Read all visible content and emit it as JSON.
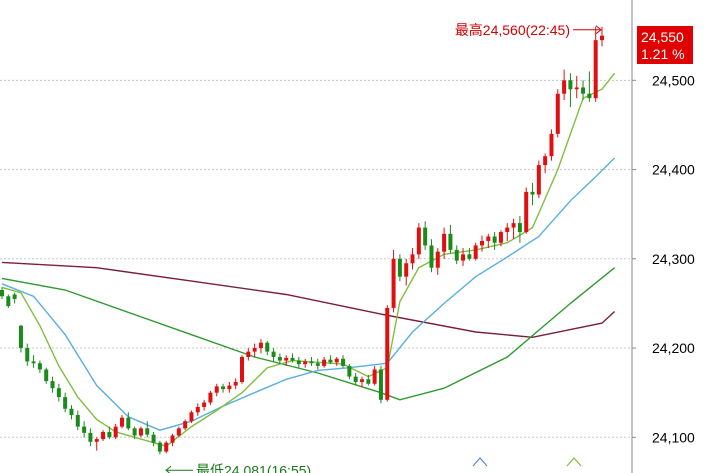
{
  "chart_data": {
    "type": "candlestick",
    "yticks": [
      24100,
      24200,
      24300,
      24400,
      24500
    ],
    "ylim": [
      24060,
      24590
    ],
    "grid": true,
    "last_price_label": "24,550",
    "last_change_label": "1.21 %",
    "high_annotation": "最高24,560(22:45)",
    "low_annotation": "最低24,081(16:55)",
    "candles": [
      [
        24265,
        24268,
        24255,
        24258
      ],
      [
        24258,
        24260,
        24245,
        24247
      ],
      [
        24260,
        24262,
        24250,
        24255
      ],
      [
        24225,
        24226,
        24195,
        24200
      ],
      [
        24200,
        24205,
        24180,
        24185
      ],
      [
        24185,
        24192,
        24178,
        24183
      ],
      [
        24183,
        24186,
        24172,
        24176
      ],
      [
        24176,
        24178,
        24160,
        24163
      ],
      [
        24163,
        24168,
        24150,
        24155
      ],
      [
        24155,
        24160,
        24140,
        24145
      ],
      [
        24145,
        24150,
        24128,
        24132
      ],
      [
        24132,
        24136,
        24120,
        24125
      ],
      [
        24125,
        24130,
        24108,
        24112
      ],
      [
        24112,
        24118,
        24100,
        24105
      ],
      [
        24105,
        24110,
        24090,
        24095
      ],
      [
        24095,
        24100,
        24085,
        24098
      ],
      [
        24098,
        24108,
        24096,
        24106
      ],
      [
        24106,
        24112,
        24098,
        24100
      ],
      [
        24100,
        24115,
        24098,
        24112
      ],
      [
        24112,
        24125,
        24110,
        24122
      ],
      [
        24122,
        24128,
        24108,
        24110
      ],
      [
        24110,
        24112,
        24098,
        24102
      ],
      [
        24102,
        24112,
        24100,
        24110
      ],
      [
        24110,
        24118,
        24100,
        24103
      ],
      [
        24103,
        24106,
        24090,
        24094
      ],
      [
        24094,
        24096,
        24081,
        24084
      ],
      [
        24084,
        24096,
        24082,
        24094
      ],
      [
        24094,
        24104,
        24090,
        24102
      ],
      [
        24102,
        24112,
        24100,
        24110
      ],
      [
        24110,
        24120,
        24108,
        24118
      ],
      [
        24118,
        24130,
        24116,
        24128
      ],
      [
        24128,
        24138,
        24124,
        24134
      ],
      [
        24134,
        24142,
        24130,
        24139
      ],
      [
        24139,
        24152,
        24136,
        24150
      ],
      [
        24150,
        24160,
        24146,
        24157
      ],
      [
        24157,
        24160,
        24150,
        24154
      ],
      [
        24154,
        24162,
        24150,
        24158
      ],
      [
        24158,
        24166,
        24154,
        24162
      ],
      [
        24162,
        24192,
        24160,
        24190
      ],
      [
        24190,
        24200,
        24186,
        24196
      ],
      [
        24196,
        24205,
        24190,
        24200
      ],
      [
        24200,
        24210,
        24194,
        24206
      ],
      [
        24206,
        24208,
        24192,
        24196
      ],
      [
        24196,
        24200,
        24185,
        24190
      ],
      [
        24190,
        24194,
        24182,
        24186
      ],
      [
        24186,
        24192,
        24180,
        24189
      ],
      [
        24189,
        24194,
        24184,
        24186
      ],
      [
        24186,
        24190,
        24178,
        24182
      ],
      [
        24182,
        24188,
        24178,
        24185
      ],
      [
        24185,
        24190,
        24180,
        24183
      ],
      [
        24183,
        24188,
        24176,
        24180
      ],
      [
        24180,
        24190,
        24178,
        24187
      ],
      [
        24187,
        24192,
        24182,
        24184
      ],
      [
        24184,
        24190,
        24180,
        24188
      ],
      [
        24188,
        24192,
        24178,
        24180
      ],
      [
        24180,
        24182,
        24165,
        24168
      ],
      [
        24168,
        24172,
        24158,
        24162
      ],
      [
        24162,
        24168,
        24156,
        24165
      ],
      [
        24165,
        24170,
        24158,
        24160
      ],
      [
        24160,
        24180,
        24158,
        24176
      ],
      [
        24176,
        24180,
        24138,
        24142
      ],
      [
        24142,
        24248,
        24140,
        24245
      ],
      [
        24245,
        24310,
        24240,
        24300
      ],
      [
        24300,
        24305,
        24275,
        24280
      ],
      [
        24280,
        24300,
        24270,
        24295
      ],
      [
        24295,
        24312,
        24288,
        24305
      ],
      [
        24305,
        24340,
        24300,
        24335
      ],
      [
        24335,
        24342,
        24310,
        24315
      ],
      [
        24315,
        24322,
        24285,
        24290
      ],
      [
        24290,
        24312,
        24282,
        24308
      ],
      [
        24308,
        24335,
        24300,
        24328
      ],
      [
        24328,
        24338,
        24306,
        24310
      ],
      [
        24310,
        24315,
        24294,
        24298
      ],
      [
        24298,
        24312,
        24292,
        24305
      ],
      [
        24305,
        24312,
        24298,
        24300
      ],
      [
        24300,
        24318,
        24298,
        24315
      ],
      [
        24315,
        24326,
        24308,
        24320
      ],
      [
        24320,
        24328,
        24312,
        24325
      ],
      [
        24325,
        24330,
        24310,
        24318
      ],
      [
        24318,
        24332,
        24314,
        24330
      ],
      [
        24330,
        24340,
        24320,
        24335
      ],
      [
        24335,
        24345,
        24322,
        24340
      ],
      [
        24340,
        24348,
        24318,
        24330
      ],
      [
        24330,
        24380,
        24328,
        24375
      ],
      [
        24375,
        24385,
        24360,
        24372
      ],
      [
        24372,
        24410,
        24368,
        24405
      ],
      [
        24405,
        24418,
        24396,
        24415
      ],
      [
        24415,
        24445,
        24410,
        24440
      ],
      [
        24440,
        24490,
        24436,
        24485
      ],
      [
        24485,
        24512,
        24478,
        24500
      ],
      [
        24500,
        24508,
        24470,
        24490
      ],
      [
        24490,
        24505,
        24480,
        24492
      ],
      [
        24492,
        24500,
        24478,
        24485
      ],
      [
        24485,
        24510,
        24476,
        24480
      ],
      [
        24480,
        24560,
        24476,
        24545
      ],
      [
        24545,
        24560,
        24538,
        24550
      ]
    ],
    "series": [
      {
        "color": "#7a1f3d",
        "points": [
          [
            0,
            24296
          ],
          [
            15,
            24290
          ],
          [
            30,
            24275
          ],
          [
            45,
            24260
          ],
          [
            60,
            24238
          ],
          [
            75,
            24218
          ],
          [
            84,
            24212
          ],
          [
            95,
            24228
          ],
          [
            97,
            24241
          ]
        ]
      },
      {
        "color": "#2f9a2f",
        "points": [
          [
            0,
            24278
          ],
          [
            10,
            24265
          ],
          [
            20,
            24240
          ],
          [
            30,
            24215
          ],
          [
            40,
            24190
          ],
          [
            50,
            24172
          ],
          [
            60,
            24150
          ],
          [
            63,
            24142
          ],
          [
            70,
            24155
          ],
          [
            80,
            24190
          ],
          [
            90,
            24250
          ],
          [
            97,
            24290
          ]
        ]
      },
      {
        "color": "#5aaee0",
        "points": [
          [
            0,
            24272
          ],
          [
            5,
            24258
          ],
          [
            10,
            24215
          ],
          [
            15,
            24158
          ],
          [
            20,
            24123
          ],
          [
            25,
            24108
          ],
          [
            30,
            24118
          ],
          [
            35,
            24135
          ],
          [
            40,
            24150
          ],
          [
            45,
            24165
          ],
          [
            50,
            24175
          ],
          [
            55,
            24178
          ],
          [
            61,
            24183
          ],
          [
            65,
            24218
          ],
          [
            70,
            24250
          ],
          [
            75,
            24280
          ],
          [
            80,
            24302
          ],
          [
            85,
            24325
          ],
          [
            90,
            24365
          ],
          [
            94,
            24392
          ],
          [
            97,
            24413
          ]
        ]
      },
      {
        "color": "#7fbf3f",
        "points": [
          [
            0,
            24268
          ],
          [
            3,
            24262
          ],
          [
            6,
            24225
          ],
          [
            9,
            24180
          ],
          [
            12,
            24145
          ],
          [
            15,
            24120
          ],
          [
            18,
            24106
          ],
          [
            22,
            24098
          ],
          [
            26,
            24090
          ],
          [
            30,
            24112
          ],
          [
            34,
            24130
          ],
          [
            38,
            24150
          ],
          [
            42,
            24178
          ],
          [
            46,
            24186
          ],
          [
            50,
            24184
          ],
          [
            54,
            24182
          ],
          [
            58,
            24168
          ],
          [
            61,
            24178
          ],
          [
            63,
            24252
          ],
          [
            66,
            24290
          ],
          [
            70,
            24305
          ],
          [
            75,
            24310
          ],
          [
            80,
            24318
          ],
          [
            84,
            24335
          ],
          [
            88,
            24400
          ],
          [
            92,
            24480
          ],
          [
            95,
            24490
          ],
          [
            97,
            24508
          ]
        ]
      }
    ]
  }
}
